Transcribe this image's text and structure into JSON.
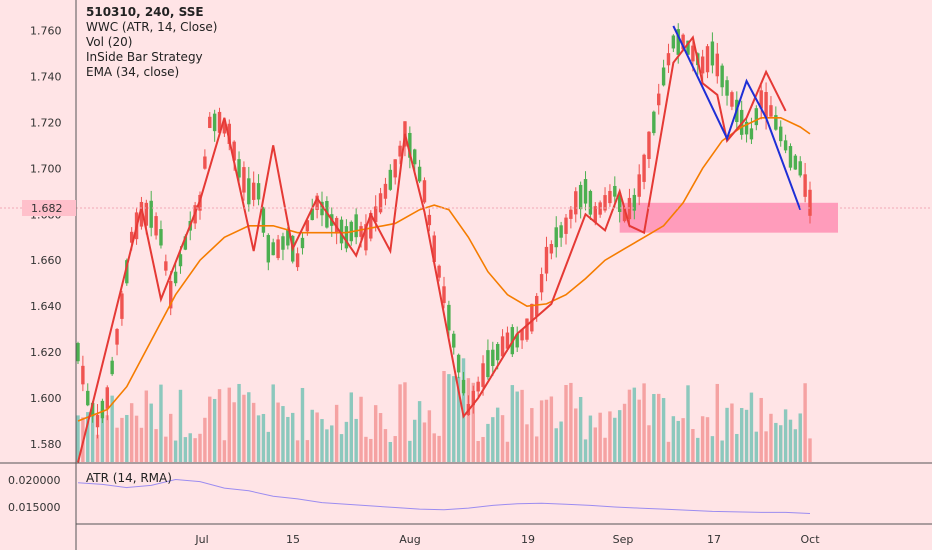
{
  "legend": {
    "symbol_line": "510310, 240, SSE",
    "indicators": [
      "WWC (ATR, 14, Close)",
      "Vol (20)",
      "InSide Bar Strategy",
      "EMA (34, close)"
    ]
  },
  "atr_label": "ATR (14, RMA)",
  "price_marker": "1.682",
  "colors": {
    "background": "#ffe4e6",
    "up": "#4caf50",
    "down": "#ef5350",
    "ema": "#f57c00",
    "zigzag_red": "#e53935",
    "zigzag_blue": "#1e2fd6",
    "zone": "#ff8fb3",
    "atr_line": "#9c8cf0",
    "vol_up": "#7fc4b8",
    "vol_down": "#f49a9a"
  },
  "chart_data": [
    {
      "type": "candlestick",
      "title": "510310, 240, SSE",
      "ylim": [
        1.57,
        1.765
      ],
      "y_ticks": [
        "1.760",
        "1.740",
        "1.720",
        "1.700",
        "1.680",
        "1.660",
        "1.640",
        "1.620",
        "1.600",
        "1.580"
      ],
      "x_ticks": [
        "Jul",
        "15",
        "Aug",
        "19",
        "Sep",
        "17",
        "Oct"
      ],
      "price_path": [
        [
          0,
          1.62
        ],
        [
          2,
          1.6
        ],
        [
          4,
          1.59
        ],
        [
          6,
          1.6
        ],
        [
          9,
          1.64
        ],
        [
          11,
          1.67
        ],
        [
          13,
          1.68
        ],
        [
          15,
          1.68
        ],
        [
          17,
          1.67
        ],
        [
          19,
          1.645
        ],
        [
          21,
          1.66
        ],
        [
          23,
          1.675
        ],
        [
          25,
          1.685
        ],
        [
          27,
          1.72
        ],
        [
          29,
          1.72
        ],
        [
          31,
          1.715
        ],
        [
          33,
          1.7
        ],
        [
          35,
          1.69
        ],
        [
          37,
          1.69
        ],
        [
          39,
          1.665
        ],
        [
          41,
          1.665
        ],
        [
          43,
          1.67
        ],
        [
          45,
          1.66
        ],
        [
          47,
          1.675
        ],
        [
          49,
          1.685
        ],
        [
          51,
          1.68
        ],
        [
          53,
          1.675
        ],
        [
          55,
          1.67
        ],
        [
          57,
          1.675
        ],
        [
          59,
          1.67
        ],
        [
          61,
          1.68
        ],
        [
          63,
          1.69
        ],
        [
          65,
          1.7
        ],
        [
          67,
          1.715
        ],
        [
          69,
          1.705
        ],
        [
          71,
          1.69
        ],
        [
          73,
          1.665
        ],
        [
          75,
          1.645
        ],
        [
          77,
          1.625
        ],
        [
          79,
          1.605
        ],
        [
          80,
          1.595
        ],
        [
          82,
          1.605
        ],
        [
          84,
          1.615
        ],
        [
          86,
          1.62
        ],
        [
          88,
          1.625
        ],
        [
          90,
          1.625
        ],
        [
          92,
          1.63
        ],
        [
          94,
          1.64
        ],
        [
          96,
          1.66
        ],
        [
          98,
          1.67
        ],
        [
          100,
          1.675
        ],
        [
          102,
          1.685
        ],
        [
          104,
          1.69
        ],
        [
          106,
          1.68
        ],
        [
          108,
          1.685
        ],
        [
          110,
          1.69
        ],
        [
          112,
          1.68
        ],
        [
          114,
          1.685
        ],
        [
          116,
          1.7
        ],
        [
          118,
          1.72
        ],
        [
          120,
          1.74
        ],
        [
          122,
          1.755
        ],
        [
          124,
          1.755
        ],
        [
          126,
          1.75
        ],
        [
          128,
          1.745
        ],
        [
          130,
          1.75
        ],
        [
          132,
          1.74
        ],
        [
          134,
          1.73
        ],
        [
          136,
          1.72
        ],
        [
          138,
          1.715
        ],
        [
          140,
          1.73
        ],
        [
          142,
          1.725
        ],
        [
          144,
          1.715
        ],
        [
          146,
          1.705
        ],
        [
          148,
          1.7
        ],
        [
          150,
          1.685
        ]
      ],
      "volume_max": 1
    },
    {
      "type": "line",
      "name": "EMA (34, close)",
      "x": [
        0,
        6,
        10,
        15,
        20,
        25,
        30,
        35,
        40,
        45,
        50,
        55,
        60,
        65,
        70,
        73,
        76,
        80,
        84,
        88,
        92,
        96,
        100,
        104,
        108,
        112,
        116,
        120,
        124,
        128,
        132,
        136,
        140,
        144,
        148,
        150
      ],
      "values": [
        1.59,
        1.595,
        1.605,
        1.625,
        1.645,
        1.66,
        1.67,
        1.675,
        1.675,
        1.672,
        1.672,
        1.672,
        1.674,
        1.676,
        1.682,
        1.684,
        1.682,
        1.67,
        1.655,
        1.645,
        1.64,
        1.641,
        1.645,
        1.652,
        1.66,
        1.665,
        1.67,
        1.675,
        1.685,
        1.7,
        1.712,
        1.718,
        1.722,
        1.722,
        1.718,
        1.715
      ]
    },
    {
      "type": "line",
      "name": "ZigZag",
      "red_x": [
        0,
        13,
        17,
        25,
        30,
        36,
        40,
        44,
        49,
        57,
        60,
        64,
        67,
        71,
        79,
        82,
        90,
        97,
        104,
        108,
        111,
        113,
        116,
        122,
        126,
        128,
        131,
        133,
        137,
        141,
        145
      ],
      "red_values": [
        1.572,
        1.683,
        1.643,
        1.686,
        1.722,
        1.664,
        1.71,
        1.665,
        1.687,
        1.662,
        1.68,
        1.664,
        1.715,
        1.681,
        1.592,
        1.6,
        1.628,
        1.641,
        1.68,
        1.673,
        1.69,
        1.675,
        1.672,
        1.746,
        1.757,
        1.737,
        1.732,
        1.712,
        1.722,
        1.742,
        1.725
      ],
      "blue_x": [
        122,
        133,
        137,
        141,
        148
      ],
      "blue_values": [
        1.762,
        1.713,
        1.738,
        1.722,
        1.682
      ]
    },
    {
      "type": "line",
      "name": "ATR (14, RMA)",
      "y_ticks": [
        "0.020000",
        "0.015000"
      ],
      "ylim": [
        0.0115,
        0.0215
      ],
      "x": [
        0,
        5,
        10,
        15,
        20,
        25,
        30,
        35,
        40,
        45,
        50,
        55,
        60,
        65,
        70,
        75,
        80,
        85,
        90,
        95,
        100,
        105,
        110,
        115,
        120,
        125,
        130,
        135,
        140,
        145,
        150
      ],
      "values": [
        0.0195,
        0.0192,
        0.0186,
        0.019,
        0.0201,
        0.0197,
        0.0185,
        0.018,
        0.017,
        0.0165,
        0.0158,
        0.0155,
        0.0152,
        0.0149,
        0.0146,
        0.0145,
        0.0148,
        0.0153,
        0.0156,
        0.0157,
        0.0155,
        0.0153,
        0.015,
        0.0148,
        0.0146,
        0.0144,
        0.0142,
        0.0141,
        0.014,
        0.014,
        0.0138
      ]
    }
  ]
}
